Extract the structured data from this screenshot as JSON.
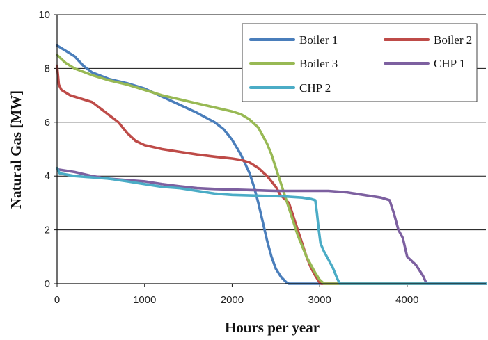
{
  "chart_data": {
    "type": "line",
    "title": "",
    "xlabel": "Hours per year",
    "ylabel": "Natural Gas [MW]",
    "xlim": [
      0,
      4900
    ],
    "ylim": [
      0,
      10
    ],
    "x_ticks": [
      "0",
      "1000",
      "2000",
      "3000",
      "4000"
    ],
    "x_tick_values": [
      0,
      1000,
      2000,
      3000,
      4000
    ],
    "y_ticks": [
      "0",
      "2",
      "4",
      "6",
      "8",
      "10"
    ],
    "y_tick_values": [
      0,
      2,
      4,
      6,
      8,
      10
    ],
    "grid": "horizontal",
    "legend_position": "top-right",
    "series": [
      {
        "name": "Boiler 1",
        "color": "#4a7ebb",
        "points": [
          [
            0,
            8.85
          ],
          [
            100,
            8.65
          ],
          [
            200,
            8.45
          ],
          [
            300,
            8.1
          ],
          [
            400,
            7.85
          ],
          [
            600,
            7.6
          ],
          [
            800,
            7.45
          ],
          [
            1000,
            7.25
          ],
          [
            1200,
            6.95
          ],
          [
            1400,
            6.65
          ],
          [
            1600,
            6.35
          ],
          [
            1800,
            6.0
          ],
          [
            1900,
            5.75
          ],
          [
            2000,
            5.35
          ],
          [
            2100,
            4.8
          ],
          [
            2200,
            4.1
          ],
          [
            2250,
            3.6
          ],
          [
            2300,
            3.0
          ],
          [
            2350,
            2.3
          ],
          [
            2400,
            1.6
          ],
          [
            2450,
            1.0
          ],
          [
            2500,
            0.55
          ],
          [
            2560,
            0.25
          ],
          [
            2620,
            0.05
          ],
          [
            2650,
            0
          ],
          [
            4900,
            0
          ]
        ]
      },
      {
        "name": "Boiler 2",
        "color": "#be4b48",
        "points": [
          [
            0,
            8.1
          ],
          [
            20,
            7.4
          ],
          [
            50,
            7.2
          ],
          [
            150,
            7.0
          ],
          [
            300,
            6.85
          ],
          [
            400,
            6.75
          ],
          [
            500,
            6.5
          ],
          [
            600,
            6.25
          ],
          [
            700,
            6.0
          ],
          [
            800,
            5.6
          ],
          [
            900,
            5.3
          ],
          [
            1000,
            5.15
          ],
          [
            1200,
            5.0
          ],
          [
            1400,
            4.9
          ],
          [
            1600,
            4.8
          ],
          [
            1800,
            4.72
          ],
          [
            2000,
            4.65
          ],
          [
            2100,
            4.6
          ],
          [
            2200,
            4.5
          ],
          [
            2300,
            4.3
          ],
          [
            2400,
            4.0
          ],
          [
            2500,
            3.6
          ],
          [
            2550,
            3.3
          ],
          [
            2650,
            3.0
          ],
          [
            2700,
            2.5
          ],
          [
            2750,
            2.0
          ],
          [
            2800,
            1.5
          ],
          [
            2850,
            1.0
          ],
          [
            2900,
            0.6
          ],
          [
            2950,
            0.3
          ],
          [
            3000,
            0.05
          ],
          [
            3020,
            0
          ],
          [
            4900,
            0
          ]
        ]
      },
      {
        "name": "Boiler 3",
        "color": "#98b954",
        "points": [
          [
            0,
            8.5
          ],
          [
            100,
            8.2
          ],
          [
            200,
            8.0
          ],
          [
            400,
            7.75
          ],
          [
            600,
            7.55
          ],
          [
            800,
            7.4
          ],
          [
            1000,
            7.2
          ],
          [
            1200,
            7.0
          ],
          [
            1400,
            6.85
          ],
          [
            1600,
            6.7
          ],
          [
            1800,
            6.55
          ],
          [
            2000,
            6.4
          ],
          [
            2100,
            6.3
          ],
          [
            2200,
            6.1
          ],
          [
            2300,
            5.8
          ],
          [
            2400,
            5.2
          ],
          [
            2450,
            4.8
          ],
          [
            2500,
            4.3
          ],
          [
            2550,
            3.8
          ],
          [
            2600,
            3.3
          ],
          [
            2650,
            2.8
          ],
          [
            2700,
            2.3
          ],
          [
            2750,
            1.8
          ],
          [
            2800,
            1.4
          ],
          [
            2850,
            1.0
          ],
          [
            2900,
            0.7
          ],
          [
            2950,
            0.4
          ],
          [
            3000,
            0.15
          ],
          [
            3050,
            0
          ],
          [
            4900,
            0
          ]
        ]
      },
      {
        "name": "CHP 1",
        "color": "#7d60a0",
        "points": [
          [
            0,
            4.25
          ],
          [
            200,
            4.15
          ],
          [
            400,
            4.0
          ],
          [
            600,
            3.9
          ],
          [
            800,
            3.85
          ],
          [
            1000,
            3.8
          ],
          [
            1200,
            3.7
          ],
          [
            1400,
            3.62
          ],
          [
            1600,
            3.55
          ],
          [
            1800,
            3.52
          ],
          [
            2000,
            3.5
          ],
          [
            2200,
            3.48
          ],
          [
            2500,
            3.45
          ],
          [
            2800,
            3.45
          ],
          [
            3100,
            3.45
          ],
          [
            3300,
            3.4
          ],
          [
            3500,
            3.3
          ],
          [
            3700,
            3.2
          ],
          [
            3800,
            3.1
          ],
          [
            3850,
            2.6
          ],
          [
            3900,
            2.0
          ],
          [
            3950,
            1.7
          ],
          [
            4000,
            1.0
          ],
          [
            4100,
            0.7
          ],
          [
            4180,
            0.3
          ],
          [
            4220,
            0.02
          ],
          [
            4230,
            0
          ],
          [
            4900,
            0
          ]
        ]
      },
      {
        "name": "CHP 2",
        "color": "#4bacc6",
        "points": [
          [
            0,
            4.3
          ],
          [
            30,
            4.1
          ],
          [
            200,
            4.0
          ],
          [
            400,
            3.95
          ],
          [
            600,
            3.9
          ],
          [
            800,
            3.8
          ],
          [
            1000,
            3.7
          ],
          [
            1200,
            3.6
          ],
          [
            1400,
            3.55
          ],
          [
            1600,
            3.45
          ],
          [
            1800,
            3.35
          ],
          [
            2000,
            3.3
          ],
          [
            2200,
            3.28
          ],
          [
            2400,
            3.26
          ],
          [
            2600,
            3.24
          ],
          [
            2800,
            3.2
          ],
          [
            2900,
            3.15
          ],
          [
            2950,
            3.1
          ],
          [
            2970,
            2.6
          ],
          [
            2990,
            2.0
          ],
          [
            3010,
            1.5
          ],
          [
            3050,
            1.2
          ],
          [
            3100,
            0.9
          ],
          [
            3150,
            0.6
          ],
          [
            3200,
            0.2
          ],
          [
            3230,
            0
          ],
          [
            4900,
            0
          ]
        ]
      }
    ]
  }
}
